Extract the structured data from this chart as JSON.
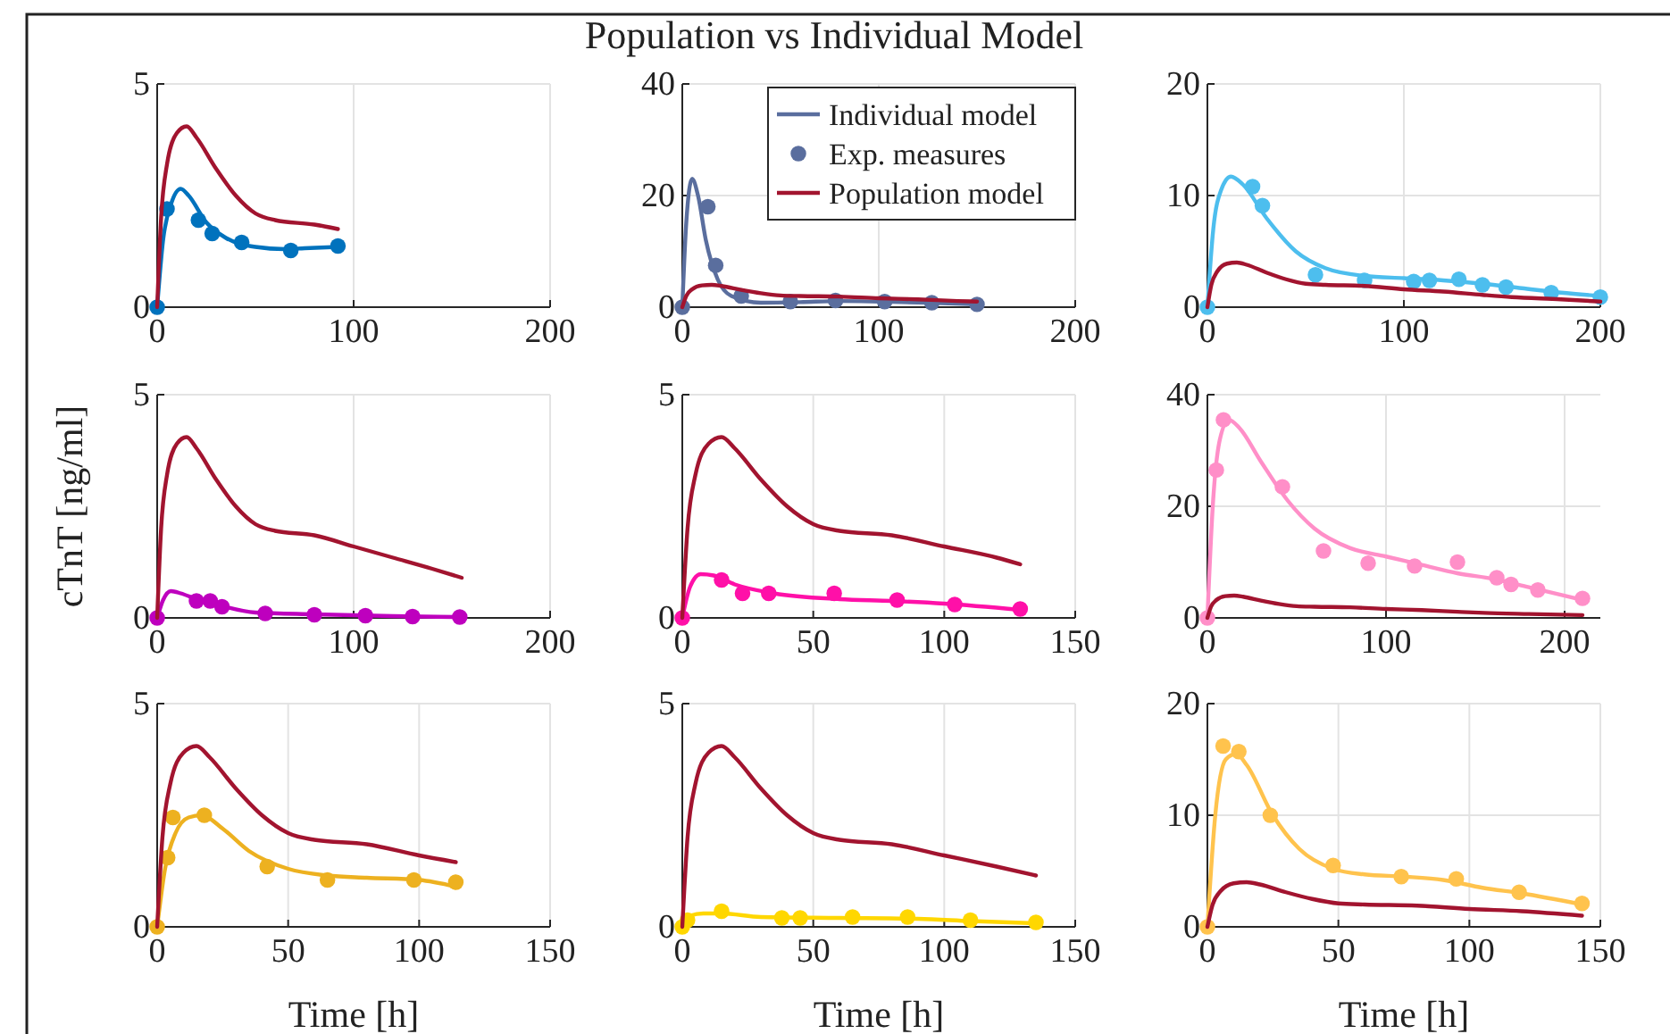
{
  "chart_data": [
    {
      "type": "line",
      "xlim": [
        0,
        200
      ],
      "xticks": [
        0,
        100,
        200
      ],
      "ylim": [
        0,
        5
      ],
      "yticks": [
        0,
        5
      ],
      "grid": true,
      "series": [
        {
          "color": "#0072bd",
          "x": [
            0,
            3,
            7,
            12,
            16,
            25,
            35,
            50,
            65,
            75,
            92
          ],
          "values": [
            0,
            1.5,
            2.3,
            2.65,
            2.5,
            1.9,
            1.55,
            1.35,
            1.3,
            1.32,
            1.35
          ]
        },
        {
          "type": "scatter",
          "marker": "circle",
          "color": "#0072bd",
          "x": [
            0,
            5,
            21,
            28,
            43,
            68,
            92
          ],
          "values": [
            0,
            2.2,
            1.95,
            1.65,
            1.45,
            1.27,
            1.37
          ]
        },
        {
          "color": "#a2142f",
          "x": [
            0,
            2,
            5,
            10,
            15,
            20,
            30,
            40,
            50,
            60,
            80,
            92
          ],
          "values": [
            0,
            2,
            3.2,
            3.9,
            4.05,
            3.8,
            3.1,
            2.5,
            2.1,
            1.95,
            1.85,
            1.75
          ]
        }
      ]
    },
    {
      "type": "line",
      "title": "Population vs Individual Model",
      "xlim": [
        0,
        200
      ],
      "xticks": [
        0,
        100,
        200
      ],
      "ylim": [
        0,
        40
      ],
      "yticks": [
        0,
        20,
        40
      ],
      "grid": true,
      "legend": "top right",
      "series": [
        {
          "name": "Individual model",
          "color": "#5a6e9e",
          "x": [
            0,
            2,
            5,
            8,
            12,
            18,
            25,
            40,
            60,
            80,
            100,
            125,
            150
          ],
          "values": [
            0,
            15,
            23,
            20,
            12,
            5,
            2,
            0.8,
            0.9,
            1.1,
            1,
            0.8,
            0.5
          ]
        },
        {
          "type": "scatter",
          "marker": "circle",
          "name": "Exp. measures",
          "color": "#5a6e9e",
          "x": [
            0,
            13,
            17,
            30,
            55,
            78,
            103,
            127,
            150
          ],
          "values": [
            0,
            18,
            7.5,
            2,
            1,
            1.2,
            1,
            0.8,
            0.5
          ]
        },
        {
          "name": "Population model",
          "color": "#a2142f",
          "x": [
            0,
            2,
            5,
            10,
            15,
            20,
            30,
            40,
            50,
            60,
            80,
            100,
            120,
            140,
            150
          ],
          "values": [
            0,
            2,
            3.2,
            3.9,
            4,
            3.8,
            3.1,
            2.5,
            2.1,
            2,
            1.9,
            1.6,
            1.4,
            1.1,
            1
          ]
        }
      ]
    },
    {
      "type": "line",
      "xlim": [
        0,
        200
      ],
      "xticks": [
        0,
        100,
        200
      ],
      "ylim": [
        0,
        20
      ],
      "yticks": [
        0,
        10,
        20
      ],
      "grid": true,
      "series": [
        {
          "color": "#4dbeee",
          "x": [
            0,
            3,
            7,
            12,
            18,
            30,
            45,
            60,
            80,
            100,
            120,
            140,
            160,
            180,
            200
          ],
          "values": [
            0,
            7,
            10.5,
            11.7,
            11,
            8,
            5,
            3.5,
            2.8,
            2.6,
            2.4,
            2.1,
            1.7,
            1.3,
            1
          ]
        },
        {
          "type": "scatter",
          "marker": "circle",
          "color": "#4dbeee",
          "x": [
            0,
            23,
            28,
            55,
            80,
            105,
            113,
            128,
            140,
            152,
            175,
            200
          ],
          "values": [
            0,
            10.8,
            9.1,
            2.9,
            2.4,
            2.3,
            2.4,
            2.5,
            2,
            1.8,
            1.3,
            0.9
          ]
        },
        {
          "color": "#a2142f",
          "x": [
            0,
            2,
            5,
            10,
            15,
            20,
            30,
            40,
            50,
            60,
            80,
            100,
            120,
            140,
            155,
            180,
            200
          ],
          "values": [
            0,
            2,
            3.2,
            3.9,
            4,
            3.8,
            3.1,
            2.5,
            2.1,
            2,
            1.9,
            1.6,
            1.4,
            1.1,
            0.9,
            0.7,
            0.5
          ]
        }
      ]
    },
    {
      "type": "line",
      "ylabel": "cTnT [ng/ml]",
      "xlim": [
        0,
        200
      ],
      "xticks": [
        0,
        100,
        200
      ],
      "ylim": [
        0,
        5
      ],
      "yticks": [
        0,
        5
      ],
      "grid": true,
      "series": [
        {
          "color": "#be00be",
          "x": [
            0,
            3,
            7,
            12,
            20,
            30,
            50,
            80,
            120,
            154
          ],
          "values": [
            0,
            0.4,
            0.6,
            0.55,
            0.42,
            0.3,
            0.12,
            0.08,
            0.04,
            0.02
          ]
        },
        {
          "type": "scatter",
          "marker": "circle",
          "color": "#be00be",
          "x": [
            0,
            20,
            27,
            33,
            55,
            80,
            106,
            130,
            154
          ],
          "values": [
            0,
            0.38,
            0.38,
            0.25,
            0.1,
            0.07,
            0.05,
            0.03,
            0.02
          ]
        },
        {
          "color": "#a2142f",
          "x": [
            0,
            2,
            5,
            10,
            15,
            20,
            30,
            40,
            50,
            60,
            80,
            100,
            120,
            140,
            155
          ],
          "values": [
            0,
            2,
            3.2,
            3.9,
            4.05,
            3.8,
            3.1,
            2.5,
            2.1,
            1.95,
            1.85,
            1.6,
            1.35,
            1.1,
            0.9
          ]
        }
      ]
    },
    {
      "type": "line",
      "xlim": [
        0,
        150
      ],
      "xticks": [
        0,
        50,
        100,
        150
      ],
      "ylim": [
        0,
        5
      ],
      "yticks": [
        0,
        5
      ],
      "grid": true,
      "series": [
        {
          "color": "#ff10a8",
          "x": [
            0,
            3,
            7,
            12,
            20,
            35,
            60,
            80,
            100,
            129
          ],
          "values": [
            0,
            0.7,
            0.98,
            0.95,
            0.75,
            0.55,
            0.42,
            0.38,
            0.32,
            0.18
          ]
        },
        {
          "type": "scatter",
          "marker": "circle",
          "color": "#ff10a8",
          "x": [
            0,
            15,
            23,
            33,
            58,
            82,
            104,
            129
          ],
          "values": [
            0,
            0.85,
            0.55,
            0.55,
            0.55,
            0.4,
            0.3,
            0.2
          ]
        },
        {
          "color": "#a2142f",
          "x": [
            0,
            2,
            5,
            10,
            15,
            20,
            30,
            40,
            50,
            60,
            80,
            100,
            120,
            129
          ],
          "values": [
            0,
            2,
            3.2,
            3.9,
            4.05,
            3.8,
            3.1,
            2.5,
            2.1,
            1.95,
            1.85,
            1.6,
            1.35,
            1.2
          ]
        }
      ]
    },
    {
      "type": "line",
      "xlim": [
        0,
        220
      ],
      "xticks": [
        0,
        100,
        200
      ],
      "ylim": [
        0,
        40
      ],
      "yticks": [
        0,
        20,
        40
      ],
      "grid": true,
      "series": [
        {
          "color": "#ff8fc8",
          "x": [
            0,
            3,
            7,
            12,
            18,
            30,
            45,
            60,
            80,
            100,
            120,
            140,
            160,
            180,
            210
          ],
          "values": [
            0,
            20,
            32,
            35.5,
            34,
            28,
            21,
            16,
            12.5,
            11,
            9.5,
            8,
            7,
            5.5,
            3.2
          ]
        },
        {
          "type": "scatter",
          "marker": "circle",
          "color": "#ff8fc8",
          "x": [
            0,
            5,
            9,
            42,
            65,
            90,
            116,
            140,
            162,
            170,
            185,
            210
          ],
          "values": [
            0,
            26.5,
            35.5,
            23.5,
            12,
            9.8,
            9.3,
            10,
            7.2,
            6,
            5,
            3.5
          ]
        },
        {
          "color": "#a2142f",
          "x": [
            0,
            2,
            5,
            10,
            15,
            20,
            30,
            40,
            50,
            60,
            80,
            100,
            120,
            140,
            155,
            180,
            210
          ],
          "values": [
            0,
            2,
            3.2,
            3.9,
            4,
            3.8,
            3.1,
            2.5,
            2.1,
            2,
            1.9,
            1.6,
            1.4,
            1.1,
            0.9,
            0.7,
            0.5
          ]
        }
      ]
    },
    {
      "type": "line",
      "xlabel": "Time [h]",
      "xlim": [
        0,
        150
      ],
      "xticks": [
        0,
        50,
        100,
        150
      ],
      "ylim": [
        0,
        5
      ],
      "yticks": [
        0,
        5
      ],
      "grid": true,
      "series": [
        {
          "color": "#edb120",
          "x": [
            0,
            3,
            7,
            12,
            17,
            25,
            35,
            50,
            65,
            80,
            100,
            114
          ],
          "values": [
            0,
            1.3,
            2.1,
            2.45,
            2.5,
            2.2,
            1.7,
            1.3,
            1.15,
            1.1,
            1.05,
            0.9
          ]
        },
        {
          "type": "scatter",
          "marker": "circle",
          "color": "#edb120",
          "x": [
            0,
            4,
            6,
            18,
            42,
            65,
            98,
            114
          ],
          "values": [
            0,
            1.55,
            2.45,
            2.5,
            1.35,
            1.05,
            1.05,
            1
          ]
        },
        {
          "color": "#a2142f",
          "x": [
            0,
            2,
            5,
            10,
            15,
            20,
            30,
            40,
            50,
            60,
            80,
            100,
            114
          ],
          "values": [
            0,
            2,
            3.2,
            3.9,
            4.05,
            3.8,
            3.1,
            2.5,
            2.1,
            1.95,
            1.85,
            1.6,
            1.45
          ]
        }
      ]
    },
    {
      "type": "line",
      "xlabel": "Time [h]",
      "xlim": [
        0,
        150
      ],
      "xticks": [
        0,
        50,
        100,
        150
      ],
      "ylim": [
        0,
        5
      ],
      "yticks": [
        0,
        5
      ],
      "grid": true,
      "series": [
        {
          "color": "#ffd700",
          "x": [
            0,
            3,
            8,
            15,
            30,
            60,
            90,
            110,
            135
          ],
          "values": [
            0,
            0.25,
            0.3,
            0.3,
            0.22,
            0.2,
            0.18,
            0.13,
            0.08
          ]
        },
        {
          "type": "scatter",
          "marker": "circle",
          "color": "#ffd700",
          "x": [
            0,
            2,
            15,
            38,
            45,
            65,
            86,
            110,
            135
          ],
          "values": [
            0,
            0.15,
            0.35,
            0.2,
            0.2,
            0.22,
            0.22,
            0.15,
            0.1
          ]
        },
        {
          "color": "#a2142f",
          "x": [
            0,
            2,
            5,
            10,
            15,
            20,
            30,
            40,
            50,
            60,
            80,
            100,
            120,
            135
          ],
          "values": [
            0,
            2,
            3.2,
            3.9,
            4.05,
            3.8,
            3.1,
            2.5,
            2.1,
            1.95,
            1.85,
            1.6,
            1.35,
            1.15
          ]
        }
      ]
    },
    {
      "type": "line",
      "xlabel": "Time [h]",
      "xlim": [
        0,
        150
      ],
      "xticks": [
        0,
        50,
        100,
        150
      ],
      "ylim": [
        0,
        20
      ],
      "yticks": [
        0,
        10,
        20
      ],
      "grid": true,
      "series": [
        {
          "color": "#ffc34d",
          "x": [
            0,
            3,
            7,
            11,
            15,
            25,
            35,
            48,
            60,
            75,
            90,
            105,
            120,
            143
          ],
          "values": [
            0,
            10,
            15,
            15.5,
            14.5,
            10,
            7,
            5.2,
            4.7,
            4.5,
            4.2,
            3.5,
            3,
            2
          ]
        },
        {
          "type": "scatter",
          "marker": "circle",
          "color": "#ffc34d",
          "x": [
            0,
            6,
            12,
            24,
            48,
            74,
            95,
            119,
            143
          ],
          "values": [
            0,
            16.2,
            15.7,
            10,
            5.5,
            4.5,
            4.3,
            3.1,
            2.1
          ]
        },
        {
          "color": "#a2142f",
          "x": [
            0,
            2,
            5,
            10,
            15,
            20,
            30,
            40,
            50,
            60,
            80,
            100,
            120,
            143
          ],
          "values": [
            0,
            2,
            3.2,
            3.9,
            4,
            3.8,
            3.1,
            2.5,
            2.1,
            2,
            1.9,
            1.6,
            1.4,
            1
          ]
        }
      ]
    }
  ]
}
